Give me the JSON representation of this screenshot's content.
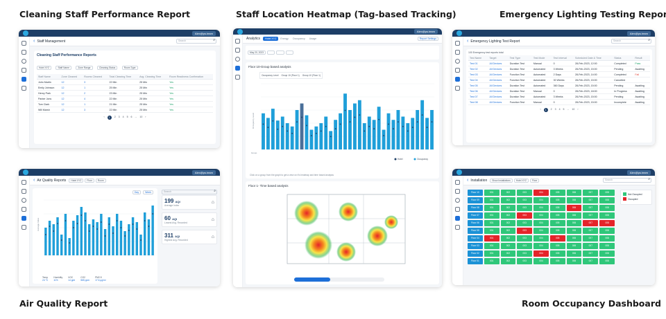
{
  "captions": {
    "cleaning": "Cleaning Staff Performance Report",
    "heatmap": "Staff Location Heatmap (Tag-based Tracking)",
    "emergency": "Emergency Lighting Testing Report",
    "air": "Air Quality Report",
    "room": "Room Occupancy Dashboard"
  },
  "common": {
    "user_label": "Alex@ps.team"
  },
  "cleaning": {
    "breadcrumb": "Staff Management",
    "search_placeholder": "Search",
    "panel_title": "Cleaning Staff Performance Reports",
    "filters": [
      "Hotel XYZ",
      "Staff Name",
      "Zone Range",
      "Cleaning Status",
      "Room Type"
    ],
    "columns": [
      "Staff Name",
      "Zone Cleaned",
      "Rooms Cleaned",
      "Total Cleaning Time",
      "Avg. Cleaning Time",
      "Room Readiness Confirmation"
    ],
    "rows": [
      [
        "John Martin",
        "12",
        "3",
        "22 Min",
        "25 Min",
        "Yes"
      ],
      [
        "Emily Johnson",
        "12",
        "1",
        "25 Min",
        "25 Min",
        "Yes"
      ],
      [
        "Henry Park",
        "12",
        "2",
        "23 Min",
        "25 Min",
        "Yes"
      ],
      [
        "Parker Jons",
        "12",
        "4",
        "22 Min",
        "25 Min",
        "Yes"
      ],
      [
        "Tom Clark",
        "12",
        "1",
        "21 Min",
        "25 Min",
        "Yes"
      ],
      [
        "Will Marsh",
        "12",
        "3",
        "22 Min",
        "25 Min",
        "Yes"
      ]
    ],
    "pages": [
      "1",
      "2",
      "3",
      "4",
      "5",
      "6",
      "...",
      "10"
    ]
  },
  "heatmap": {
    "title": "Analytics",
    "tabs": [
      "Hotel XYZ",
      "Energy",
      "Occupancy",
      "Usage"
    ],
    "date": "May 20, 2023",
    "report_settings": "Report Settings",
    "floor_section": "Floor 10-Group based analysis",
    "floor_map_title": "Floor 1- Time based analysis",
    "tooltip_lines": [
      "Occupancy Level",
      "Group 10 (Floor 1)",
      "Group 10 (Floor 1)"
    ],
    "chart_note": "Click on a group from the graph to get a view on it's heatmap and time based analysis",
    "legend": [
      "Hotel",
      "Occupancy"
    ],
    "ylabel": "Occupancy Level",
    "xlabel": "Group"
  },
  "emergency": {
    "breadcrumb": "Emergency Lighting Test Report",
    "search_placeholder": "Search",
    "summary": "100 Emergency test reports total",
    "columns": [
      "Test Name",
      "Target",
      "Test Type",
      "Test Mode",
      "Test Interval",
      "Scheduled Date & Time",
      "Status",
      "Result"
    ],
    "rows": [
      [
        "Test 01",
        "All Devices",
        "Duration Test",
        "Manual",
        "0",
        "28-Feb-2023, 12:00",
        "Completed",
        "Pass"
      ],
      [
        "Test 02",
        "All Devices",
        "Duration Test",
        "Automated",
        "3 Weeks",
        "28-Feb-2023, 15:00",
        "Pending",
        "Awaiting"
      ],
      [
        "Test 03",
        "All Devices",
        "Function Test",
        "Automated",
        "2 Days",
        "28-Feb-2023, 14:00",
        "Completed",
        "Fail"
      ],
      [
        "Test 04",
        "All Devices",
        "Function Test",
        "Automated",
        "30 Weeks",
        "28-Feb-2023, 15:00",
        "Cancelled",
        ""
      ],
      [
        "Test 05",
        "All Devices",
        "Duration Test",
        "Automated",
        "360 Days",
        "28-Feb-2023, 15:00",
        "Pending",
        "Awaiting"
      ],
      [
        "Test 06",
        "All Devices",
        "Duration Test",
        "Manual",
        "0",
        "28-Feb-2023, 18:00",
        "In Progress",
        "Awaiting"
      ],
      [
        "Test 07",
        "All Devices",
        "Duration Test",
        "Automated",
        "3 Weeks",
        "28-Feb-2023, 15:00",
        "Pending",
        "Awaiting"
      ],
      [
        "Test 08",
        "All Devices",
        "Function Test",
        "Manual",
        "0",
        "28-Feb-2023, 15:00",
        "Incomplete",
        "Awaiting"
      ]
    ],
    "pages": [
      "1",
      "2",
      "3",
      "4",
      "5",
      "...",
      "10"
    ]
  },
  "air": {
    "breadcrumb": "Air Quality Reports",
    "filters": [
      "Hotel XYZ",
      "Floor",
      "Room"
    ],
    "search_placeholder": "Search",
    "cards": [
      {
        "value": "199",
        "unit": "AQI",
        "label": "Average Index"
      },
      {
        "value": "60",
        "unit": "AQI",
        "label": "Lowest Avg. Recorded"
      },
      {
        "value": "311",
        "unit": "AQI",
        "label": "Highest Avg. Recorded"
      }
    ],
    "ylabel": "Average Index",
    "stats": [
      {
        "label": "Temp",
        "value": "24 °C"
      },
      {
        "label": "Humidity",
        "value": "11%"
      },
      {
        "label": "VOC",
        "value": "14 ppb"
      },
      {
        "label": "CO2",
        "value": "565 ppm"
      },
      {
        "label": "PM2.5",
        "value": "17.6 μg/m³"
      }
    ],
    "toggles": [
      "Day",
      "Week"
    ],
    "chart_data": {
      "type": "bar",
      "values": [
        40,
        50,
        45,
        55,
        30,
        60,
        25,
        50,
        58,
        70,
        62,
        45,
        52,
        48,
        60,
        38,
        55,
        42,
        60,
        50,
        35,
        45,
        55,
        48,
        30,
        62,
        52,
        72
      ],
      "dots": [
        30,
        42,
        35,
        46,
        22,
        50,
        18,
        40,
        46,
        58,
        50,
        35,
        42,
        38,
        48,
        28,
        45,
        32,
        50,
        40,
        28,
        36,
        45,
        38,
        22,
        50,
        42,
        60
      ]
    }
  },
  "room": {
    "breadcrumb": "Installation",
    "filters": [
      "Show Installations",
      "Hotel XYZ",
      "Floor"
    ],
    "search_placeholder": "Search",
    "legend": [
      "Not Occupied",
      "Occupied"
    ],
    "floors": [
      "Floor 10",
      "Floor 09",
      "Floor 08",
      "Floor 07",
      "Floor 06",
      "Floor 05",
      "Floor 04",
      "Floor 03",
      "Floor 02",
      "Floor 01"
    ],
    "rooms": [
      [
        "001",
        "002",
        "003",
        "004",
        "005",
        "006",
        "007",
        "008"
      ],
      [
        "001",
        "002",
        "003",
        "004",
        "005",
        "006",
        "007",
        "008"
      ],
      [
        "001",
        "002",
        "003",
        "004",
        "005",
        "006",
        "007",
        "008"
      ],
      [
        "001",
        "002",
        "003",
        "004",
        "005",
        "006",
        "007",
        "008"
      ],
      [
        "001",
        "002",
        "003",
        "004",
        "005",
        "006",
        "007",
        "008"
      ],
      [
        "001",
        "002",
        "003",
        "004",
        "005",
        "006",
        "007",
        "008"
      ],
      [
        "001",
        "002",
        "003",
        "004",
        "005",
        "006",
        "007",
        "008"
      ],
      [
        "001",
        "002",
        "003",
        "004",
        "005",
        "006",
        "007",
        "008"
      ],
      [
        "001",
        "002",
        "003",
        "004",
        "005",
        "006",
        "007",
        "008"
      ],
      [
        "001",
        "002",
        "003",
        "004",
        "005",
        "006",
        "007",
        "008"
      ]
    ],
    "status": [
      [
        "g",
        "g",
        "g",
        "r",
        "g",
        "g",
        "g",
        "g"
      ],
      [
        "g",
        "g",
        "g",
        "g",
        "g",
        "g",
        "g",
        "g"
      ],
      [
        "g",
        "g",
        "g",
        "g",
        "g",
        "r",
        "g",
        "g"
      ],
      [
        "g",
        "g",
        "r",
        "g",
        "g",
        "g",
        "g",
        "g"
      ],
      [
        "g",
        "g",
        "g",
        "g",
        "g",
        "g",
        "r",
        "r"
      ],
      [
        "g",
        "g",
        "r",
        "g",
        "g",
        "g",
        "g",
        "g"
      ],
      [
        "r",
        "g",
        "g",
        "g",
        "r",
        "g",
        "g",
        "g"
      ],
      [
        "g",
        "g",
        "g",
        "g",
        "g",
        "g",
        "g",
        "g"
      ],
      [
        "g",
        "g",
        "g",
        "r",
        "g",
        "g",
        "g",
        "g"
      ],
      [
        "g",
        "g",
        "g",
        "g",
        "g",
        "g",
        "g",
        "g"
      ]
    ],
    "colors": {
      "free": "#2fc77a",
      "occupied": "#e5242a",
      "floor": "#1b92d6"
    }
  },
  "heatmap_chart": {
    "type": "bar",
    "values": [
      55,
      48,
      62,
      44,
      50,
      40,
      35,
      60,
      70,
      52,
      30,
      35,
      40,
      50,
      28,
      45,
      55,
      85,
      60,
      70,
      75,
      40,
      50,
      45,
      65,
      30,
      55,
      45,
      60,
      50,
      40,
      48,
      60,
      75,
      48,
      60
    ],
    "highlight_index": 8
  }
}
